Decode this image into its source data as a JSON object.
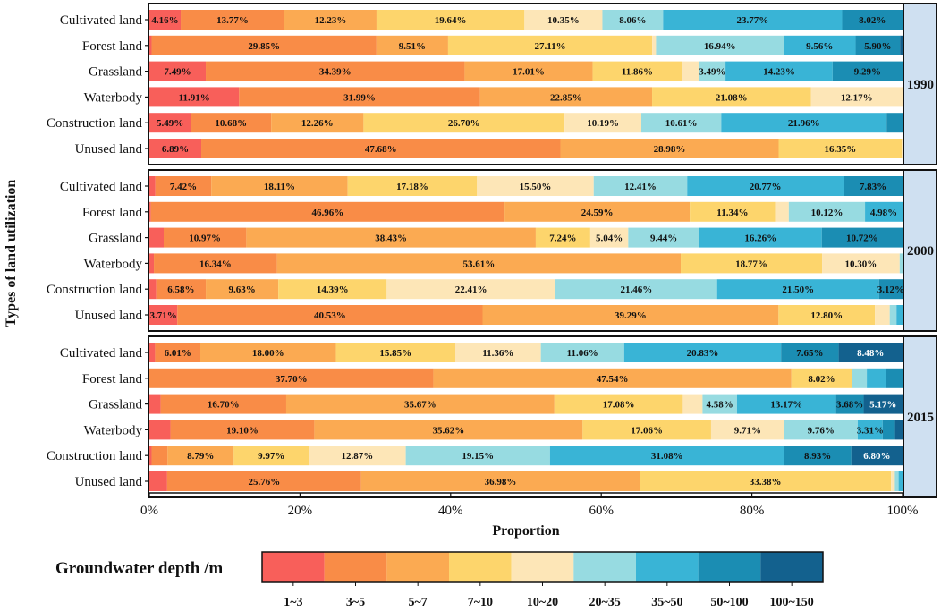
{
  "chart_data": {
    "type": "bar",
    "orientation": "horizontal-stacked-100",
    "xlabel": "Proportion",
    "ylabel": "Types of land utilization",
    "xticks": [
      "0%",
      "20%",
      "40%",
      "60%",
      "80%",
      "100%"
    ],
    "xlim": [
      0,
      100
    ],
    "legend_title": "Groundwater depth /m",
    "legend_position": "bottom",
    "depth_classes": [
      "1~3",
      "3~5",
      "5~7",
      "7~10",
      "10~20",
      "20~35",
      "35~50",
      "50~100",
      "100~150"
    ],
    "colors": [
      "#f85f5a",
      "#f98c47",
      "#fbaa52",
      "#fdd56c",
      "#fde6b7",
      "#97dbe1",
      "#39b4d6",
      "#1b8db3",
      "#13618e"
    ],
    "panels": [
      {
        "year": "1990",
        "rows": [
          {
            "category": "Cultivated land",
            "values": [
              4.16,
              13.77,
              12.23,
              19.64,
              10.35,
              8.06,
              23.77,
              8.02,
              0
            ],
            "labels": [
              "4.16%",
              "13.77%",
              "12.23%",
              "19.64%",
              "10.35%",
              "8.06%",
              "23.77%",
              "8.02%",
              ""
            ]
          },
          {
            "category": "Forest land",
            "values": [
              0.3,
              29.85,
              9.51,
              27.11,
              0.5,
              16.94,
              9.56,
              5.9,
              0.33
            ],
            "labels": [
              "",
              "29.85%",
              "9.51%",
              "27.11%",
              "",
              "16.94%",
              "9.56%",
              "5.90%",
              ""
            ]
          },
          {
            "category": "Grassland",
            "values": [
              7.49,
              34.39,
              17.01,
              11.86,
              2.3,
              3.49,
              14.23,
              9.29,
              0
            ],
            "labels": [
              "7.49%",
              "34.39%",
              "17.01%",
              "11.86%",
              "",
              "3.49%",
              "14.23%",
              "9.29%",
              ""
            ]
          },
          {
            "category": "Waterbody",
            "values": [
              11.91,
              31.99,
              22.85,
              21.08,
              12.17,
              0,
              0,
              0,
              0
            ],
            "labels": [
              "11.91%",
              "31.99%",
              "22.85%",
              "21.08%",
              "12.17%",
              "",
              "",
              "",
              ""
            ]
          },
          {
            "category": "Construction land",
            "values": [
              5.49,
              10.68,
              12.26,
              26.7,
              10.19,
              10.61,
              21.96,
              2.11,
              0
            ],
            "labels": [
              "5.49%",
              "10.68%",
              "12.26%",
              "26.70%",
              "10.19%",
              "10.61%",
              "21.96%",
              "",
              ""
            ]
          },
          {
            "category": "Unused land",
            "values": [
              6.89,
              47.68,
              28.98,
              16.35,
              0.1,
              0,
              0,
              0,
              0
            ],
            "labels": [
              "6.89%",
              "47.68%",
              "28.98%",
              "16.35%",
              "",
              "",
              "",
              "",
              ""
            ]
          }
        ]
      },
      {
        "year": "2000",
        "rows": [
          {
            "category": "Cultivated land",
            "values": [
              0.8,
              7.42,
              18.11,
              17.18,
              15.5,
              12.41,
              20.77,
              7.83,
              0
            ],
            "labels": [
              "",
              "7.42%",
              "18.11%",
              "17.18%",
              "15.50%",
              "12.41%",
              "20.77%",
              "7.83%",
              ""
            ]
          },
          {
            "category": "Forest land",
            "values": [
              0.2,
              46.96,
              24.59,
              11.34,
              1.81,
              10.12,
              4.98,
              0,
              0
            ],
            "labels": [
              "",
              "46.96%",
              "24.59%",
              "11.34%",
              "",
              "10.12%",
              "4.98%",
              "",
              ""
            ]
          },
          {
            "category": "Grassland",
            "values": [
              1.9,
              10.97,
              38.43,
              7.24,
              5.04,
              9.44,
              16.26,
              10.72,
              0
            ],
            "labels": [
              "",
              "10.97%",
              "38.43%",
              "7.24%",
              "5.04%",
              "9.44%",
              "16.26%",
              "10.72%",
              ""
            ]
          },
          {
            "category": "Waterbody",
            "values": [
              0.6,
              16.34,
              53.61,
              18.77,
              10.3,
              0.38,
              0,
              0,
              0
            ],
            "labels": [
              "",
              "16.34%",
              "53.61%",
              "18.77%",
              "10.30%",
              "",
              "",
              "",
              ""
            ]
          },
          {
            "category": "Construction land",
            "values": [
              0.91,
              6.58,
              9.63,
              14.39,
              22.41,
              21.46,
              21.5,
              3.12,
              0
            ],
            "labels": [
              "",
              "6.58%",
              "9.63%",
              "14.39%",
              "22.41%",
              "21.46%",
              "21.50%",
              "3.12%",
              ""
            ]
          },
          {
            "category": "Unused land",
            "values": [
              3.71,
              40.53,
              39.29,
              12.8,
              1.97,
              0.9,
              0.8,
              0,
              0
            ],
            "labels": [
              "3.71%",
              "40.53%",
              "39.29%",
              "12.80%",
              "",
              "",
              "",
              "",
              ""
            ]
          }
        ]
      },
      {
        "year": "2015",
        "rows": [
          {
            "category": "Cultivated land",
            "values": [
              0.76,
              6.01,
              18.0,
              15.85,
              11.36,
              11.06,
              20.83,
              7.65,
              8.48
            ],
            "labels": [
              "",
              "6.01%",
              "18.00%",
              "15.85%",
              "11.36%",
              "11.06%",
              "20.83%",
              "7.65%",
              "8.48%"
            ]
          },
          {
            "category": "Forest land",
            "values": [
              0,
              37.7,
              47.54,
              8.02,
              0,
              2.0,
              2.5,
              2.24,
              0
            ],
            "labels": [
              "",
              "37.70%",
              "47.54%",
              "8.02%",
              "",
              "",
              "",
              "",
              ""
            ]
          },
          {
            "category": "Grassland",
            "values": [
              1.5,
              16.7,
              35.67,
              17.08,
              2.62,
              4.58,
              13.17,
              3.68,
              5.17
            ],
            "labels": [
              "",
              "16.70%",
              "35.67%",
              "17.08%",
              "",
              "4.58%",
              "13.17%",
              "3.68%",
              "5.17%"
            ]
          },
          {
            "category": "Waterbody",
            "values": [
              2.8,
              19.1,
              35.62,
              17.06,
              9.71,
              9.76,
              3.31,
              1.64,
              1.0
            ],
            "labels": [
              "",
              "19.10%",
              "35.62%",
              "17.06%",
              "9.71%",
              "9.76%",
              "3.31%",
              "",
              ""
            ]
          },
          {
            "category": "Construction land",
            "values": [
              0.3,
              2.11,
              8.79,
              9.97,
              12.87,
              19.15,
              31.08,
              8.93,
              6.8
            ],
            "labels": [
              "",
              "",
              "8.79%",
              "9.97%",
              "12.87%",
              "19.15%",
              "31.08%",
              "8.93%",
              "6.80%"
            ]
          },
          {
            "category": "Unused land",
            "values": [
              2.36,
              25.76,
              36.98,
              33.38,
              0.5,
              0.5,
              0.52,
              0,
              0
            ],
            "labels": [
              "",
              "25.76%",
              "36.98%",
              "33.38%",
              "",
              "",
              "",
              "",
              ""
            ]
          }
        ]
      }
    ]
  }
}
